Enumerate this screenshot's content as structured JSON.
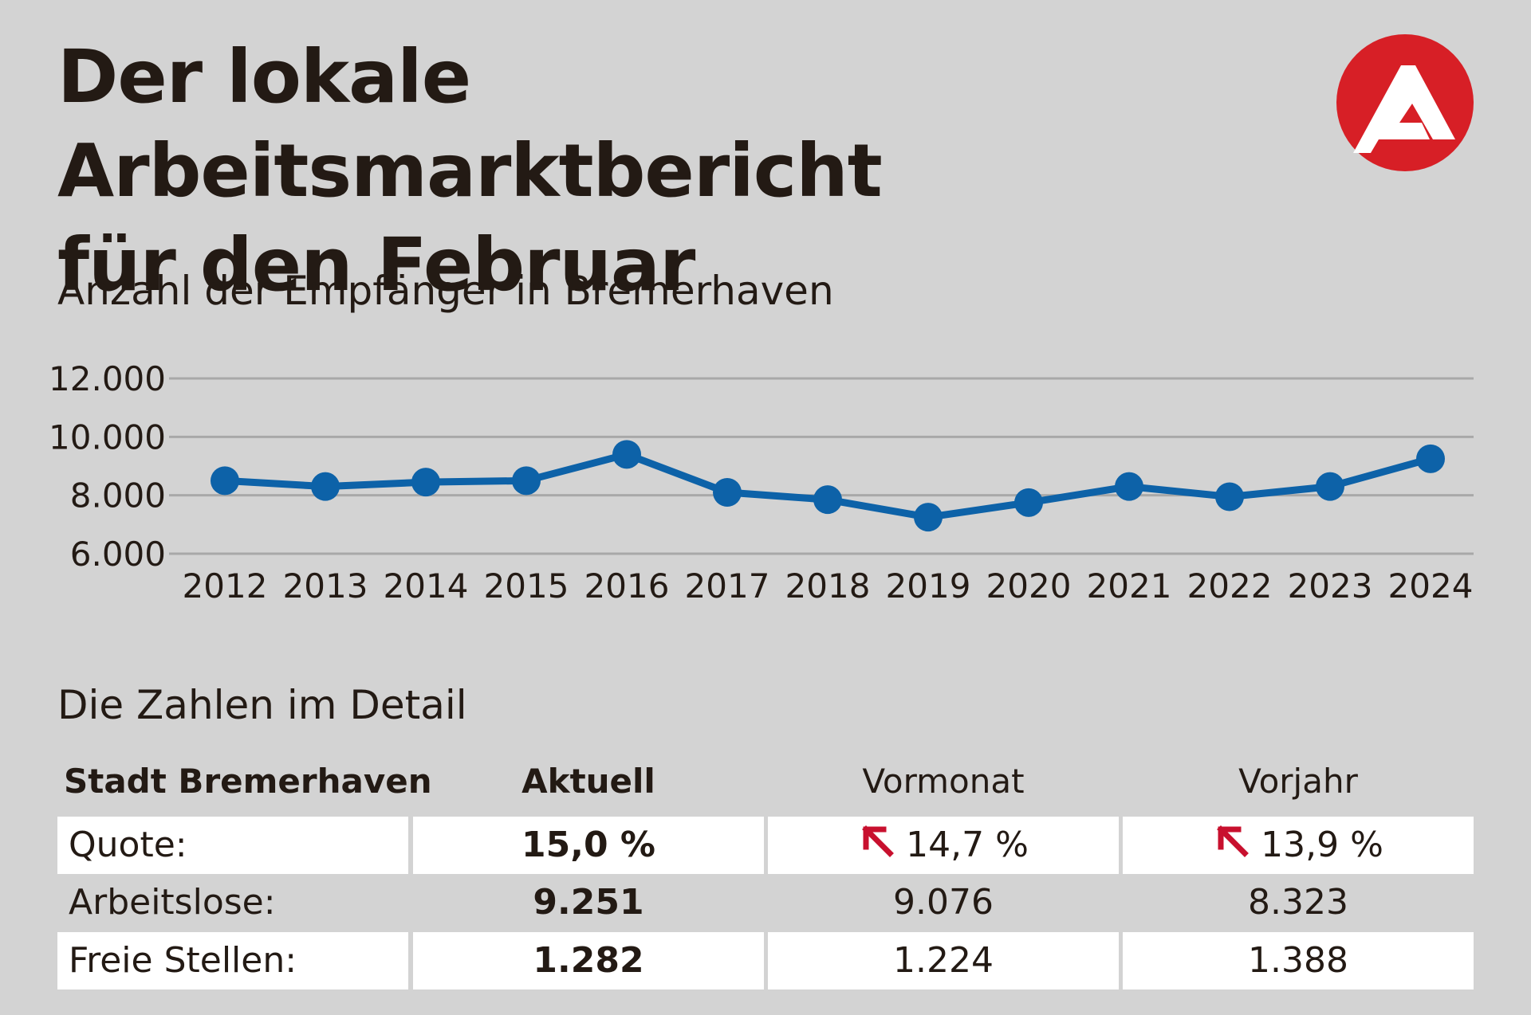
{
  "header": {
    "title_line1": "Der lokale Arbeitsmarktbericht",
    "title_line2": "für den Februar",
    "logo": "arbeitsagentur-logo",
    "logo_color": "#d71f26"
  },
  "chart_data": {
    "type": "line",
    "title": "Anzahl der Empfänger in Bremerhaven",
    "x": [
      "2012",
      "2013",
      "2014",
      "2015",
      "2016",
      "2017",
      "2018",
      "2019",
      "2020",
      "2021",
      "2022",
      "2023",
      "2024"
    ],
    "y_ticks": [
      "12.000",
      "10.000",
      "8.000",
      "6.000"
    ],
    "y_tick_values": [
      12000,
      10000,
      8000,
      6000
    ],
    "ylim": [
      6000,
      12000
    ],
    "grid": true,
    "series": [
      {
        "values": [
          8500,
          8300,
          8450,
          8500,
          9400,
          8100,
          7850,
          7250,
          7750,
          8300,
          7950,
          8300,
          9250
        ],
        "color": "#0d62a8"
      }
    ]
  },
  "detail": {
    "title": "Die Zahlen im Detail",
    "headers": [
      "Stadt Bremerhaven",
      "Aktuell",
      "Vormonat",
      "Vorjahr"
    ],
    "rows": [
      {
        "label": "Quote:",
        "aktuell": "15,0 %",
        "vormonat": "14,7 %",
        "vorjahr": "13,9 %"
      },
      {
        "label": "Arbeitslose:",
        "aktuell": "9.251",
        "vormonat": "9.076",
        "vorjahr": "8.323"
      },
      {
        "label": "Freie Stellen:",
        "aktuell": "1.282",
        "vormonat": "1.224",
        "vorjahr": "1.388"
      }
    ],
    "arrow_icon": "arrow-up-left-icon",
    "arrow_color": "#c8102e"
  }
}
